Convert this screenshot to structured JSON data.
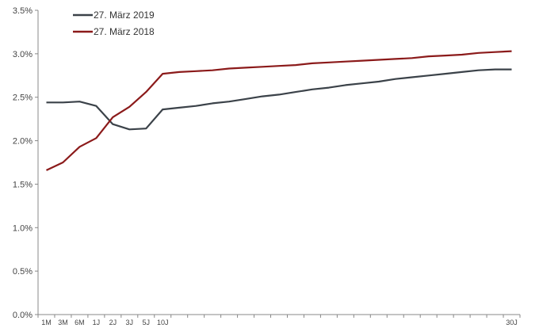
{
  "chart_data": {
    "type": "line",
    "categories": [
      "1M",
      "3M",
      "6M",
      "1J",
      "2J",
      "3J",
      "5J",
      "10J",
      "",
      "",
      "",
      "",
      "",
      "",
      "",
      "",
      "",
      "",
      "",
      "",
      "",
      "",
      "",
      "",
      "",
      "",
      "",
      "",
      "30J"
    ],
    "yticks": [
      "0.0%",
      "0.5%",
      "1.0%",
      "1.5%",
      "2.0%",
      "2.5%",
      "3.0%",
      "3.5%"
    ],
    "ylim": [
      0,
      3.5
    ],
    "series": [
      {
        "name": "27. März 2019",
        "color": "#3b4249",
        "values": [
          2.44,
          2.44,
          2.45,
          2.4,
          2.19,
          2.13,
          2.14,
          2.36,
          2.38,
          2.4,
          2.43,
          2.45,
          2.48,
          2.51,
          2.53,
          2.56,
          2.59,
          2.61,
          2.64,
          2.66,
          2.68,
          2.71,
          2.73,
          2.75,
          2.77,
          2.79,
          2.81,
          2.82,
          2.82
        ]
      },
      {
        "name": "27. März 2018",
        "color": "#8b1a1a",
        "values": [
          1.66,
          1.75,
          1.93,
          2.03,
          2.27,
          2.39,
          2.56,
          2.77,
          2.79,
          2.8,
          2.81,
          2.83,
          2.84,
          2.85,
          2.86,
          2.87,
          2.89,
          2.9,
          2.91,
          2.92,
          2.93,
          2.94,
          2.95,
          2.97,
          2.98,
          2.99,
          3.01,
          3.02,
          3.03
        ]
      }
    ],
    "grid": false,
    "legend": "top-left"
  }
}
